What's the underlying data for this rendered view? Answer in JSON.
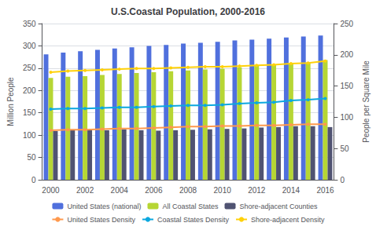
{
  "chart_data": {
    "type": "bar",
    "title": "U.S.Coastal Population, 2000-2016",
    "categories": [
      "2000",
      null,
      "2002",
      null,
      "2004",
      null,
      "2006",
      null,
      "2008",
      null,
      "2010",
      null,
      "2012",
      null,
      "2014",
      null,
      "2016"
    ],
    "series": [
      {
        "name": "United States (national)",
        "type": "bar",
        "values": [
          281,
          285,
          288,
          291,
          294,
          297,
          300,
          302,
          305,
          307,
          309,
          312,
          314,
          316,
          319,
          321,
          323
        ]
      },
      {
        "name": "All Coastal States",
        "type": "bar",
        "values": [
          228,
          231,
          232,
          235,
          237,
          239,
          241,
          243,
          245,
          247,
          249,
          252,
          255,
          257,
          261,
          263,
          268
        ]
      },
      {
        "name": "Shore-adjacent Counties",
        "type": "bar",
        "values": [
          109,
          111,
          111,
          111,
          113,
          111,
          110,
          111,
          112,
          113,
          114,
          115,
          117,
          118,
          120,
          120,
          118
        ]
      },
      {
        "name": "United States Density",
        "type": "line",
        "axis": "y2",
        "marker": "circle",
        "values": [
          79,
          80,
          80,
          81,
          82,
          82,
          83,
          84,
          85,
          85,
          86,
          86,
          87,
          87,
          88,
          89,
          89
        ]
      },
      {
        "name": "Coastal States Density",
        "type": "line",
        "axis": "y2",
        "marker": "circle",
        "values": [
          113,
          114,
          114,
          115,
          116,
          116,
          117,
          118,
          119,
          119,
          120,
          122,
          123,
          124,
          127,
          128,
          130
        ]
      },
      {
        "name": "Shore-adjacent Density",
        "type": "line",
        "axis": "y2",
        "marker": "circle",
        "values": [
          172,
          174,
          175,
          176,
          177,
          178,
          178,
          179,
          180,
          181,
          181,
          182,
          183,
          184,
          186,
          187,
          190
        ]
      }
    ],
    "ylabel": "Million People",
    "y2label": "People per Square Mile",
    "ylim": [
      0,
      350
    ],
    "yticks": [
      0,
      50,
      100,
      150,
      200,
      250,
      300,
      350
    ],
    "y2lim": [
      0,
      250
    ],
    "y2ticks": [
      0,
      50,
      100,
      150,
      200,
      250
    ],
    "grid": true,
    "legend": "bottom"
  }
}
